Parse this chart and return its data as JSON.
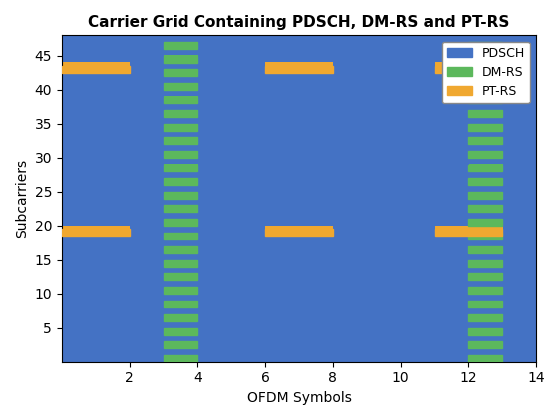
{
  "title": "Carrier Grid Containing PDSCH, DM-RS and PT-RS",
  "xlabel": "OFDM Symbols",
  "ylabel": "Subcarriers",
  "num_symbols": 14,
  "num_subcarriers": 48,
  "pdsch_color": "#4472C4",
  "dmrs_color": "#5CB85C",
  "ptrs_color": "#F0A830",
  "dmrs_cols": [
    3,
    12
  ],
  "dmrs_skip": 2,
  "ptrs_blocks": [
    {
      "x_start": 0,
      "x_end": 1,
      "y_center": 43
    },
    {
      "x_start": 0,
      "x_end": 1,
      "y_center": 19
    },
    {
      "x_start": 6,
      "x_end": 7,
      "y_center": 43
    },
    {
      "x_start": 6,
      "x_end": 7,
      "y_center": 19
    },
    {
      "x_start": 11,
      "x_end": 12,
      "y_center": 43
    },
    {
      "x_start": 11,
      "x_end": 12,
      "y_center": 19
    }
  ],
  "xlim": [
    0,
    14
  ],
  "ylim": [
    0,
    48
  ],
  "xticks": [
    2,
    4,
    6,
    8,
    10,
    12,
    14
  ],
  "yticks": [
    5,
    10,
    15,
    20,
    25,
    30,
    35,
    40,
    45
  ],
  "figsize": [
    5.6,
    4.2
  ],
  "dpi": 100
}
